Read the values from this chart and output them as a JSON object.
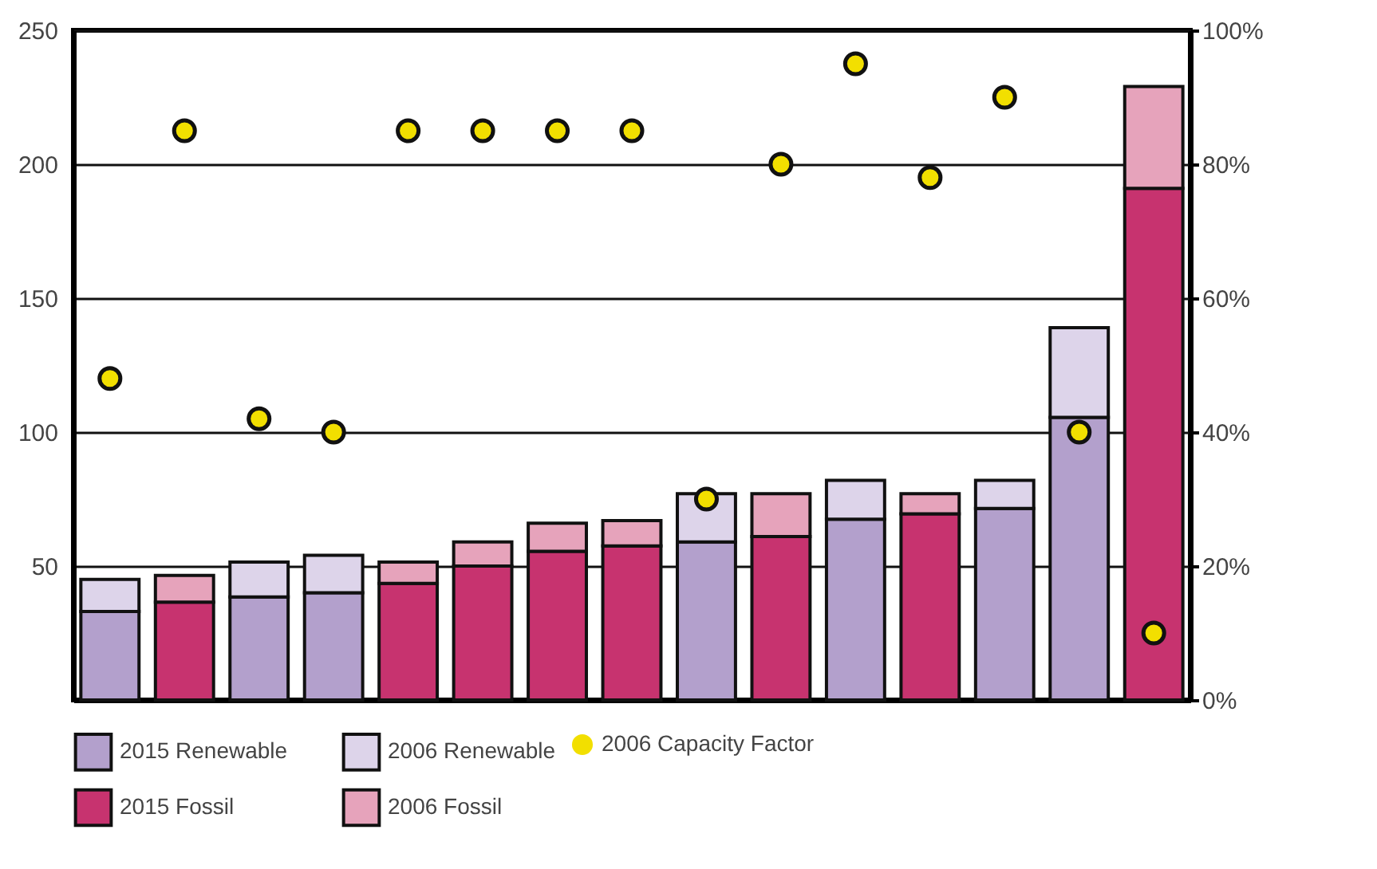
{
  "chart_data": {
    "type": "bar",
    "stacked": true,
    "categories": [
      null,
      null,
      null,
      null,
      null,
      null,
      null,
      null,
      null,
      null,
      null,
      null,
      null,
      null,
      null
    ],
    "series": [
      {
        "name": "2015 Renewable",
        "color": "#b3a0cc",
        "values": [
          33,
          null,
          38.5,
          40,
          null,
          null,
          null,
          null,
          59,
          null,
          67.5,
          null,
          71.5,
          105.5,
          null
        ]
      },
      {
        "name": "2006 Renewable",
        "color": "#ddd4ea",
        "values": [
          12,
          null,
          13,
          14,
          null,
          null,
          null,
          null,
          18,
          null,
          14.5,
          null,
          10.5,
          33.5,
          null
        ]
      },
      {
        "name": "2015 Fossil",
        "color": "#c7336f",
        "values": [
          null,
          36.5,
          null,
          null,
          43.5,
          50,
          55.5,
          57.5,
          null,
          61,
          null,
          69.5,
          null,
          null,
          191
        ]
      },
      {
        "name": "2006 Fossil",
        "color": "#e6a3bb",
        "values": [
          null,
          10,
          null,
          null,
          8,
          9,
          10.5,
          9.5,
          null,
          16,
          null,
          7.5,
          null,
          null,
          38
        ]
      },
      {
        "name": "2006 Capacity Factor",
        "type": "scatter",
        "axis": "y2",
        "color": "#f2df00",
        "values": [
          48,
          85,
          42,
          40,
          85,
          85,
          85,
          85,
          30,
          80,
          95,
          78,
          90,
          40,
          10
        ]
      }
    ],
    "ylim": [
      0,
      250
    ],
    "yticks": [
      50,
      100,
      150,
      200,
      250
    ],
    "y2lim": [
      0,
      100
    ],
    "y2ticks": [
      {
        "value": 0,
        "label": "0%"
      },
      {
        "value": 20,
        "label": "20%"
      },
      {
        "value": 40,
        "label": "40%"
      },
      {
        "value": 60,
        "label": "60%"
      },
      {
        "value": 80,
        "label": "80%"
      },
      {
        "value": 100,
        "label": "100%"
      }
    ],
    "grid": "y",
    "legend": "bottom",
    "marker": "circle"
  }
}
